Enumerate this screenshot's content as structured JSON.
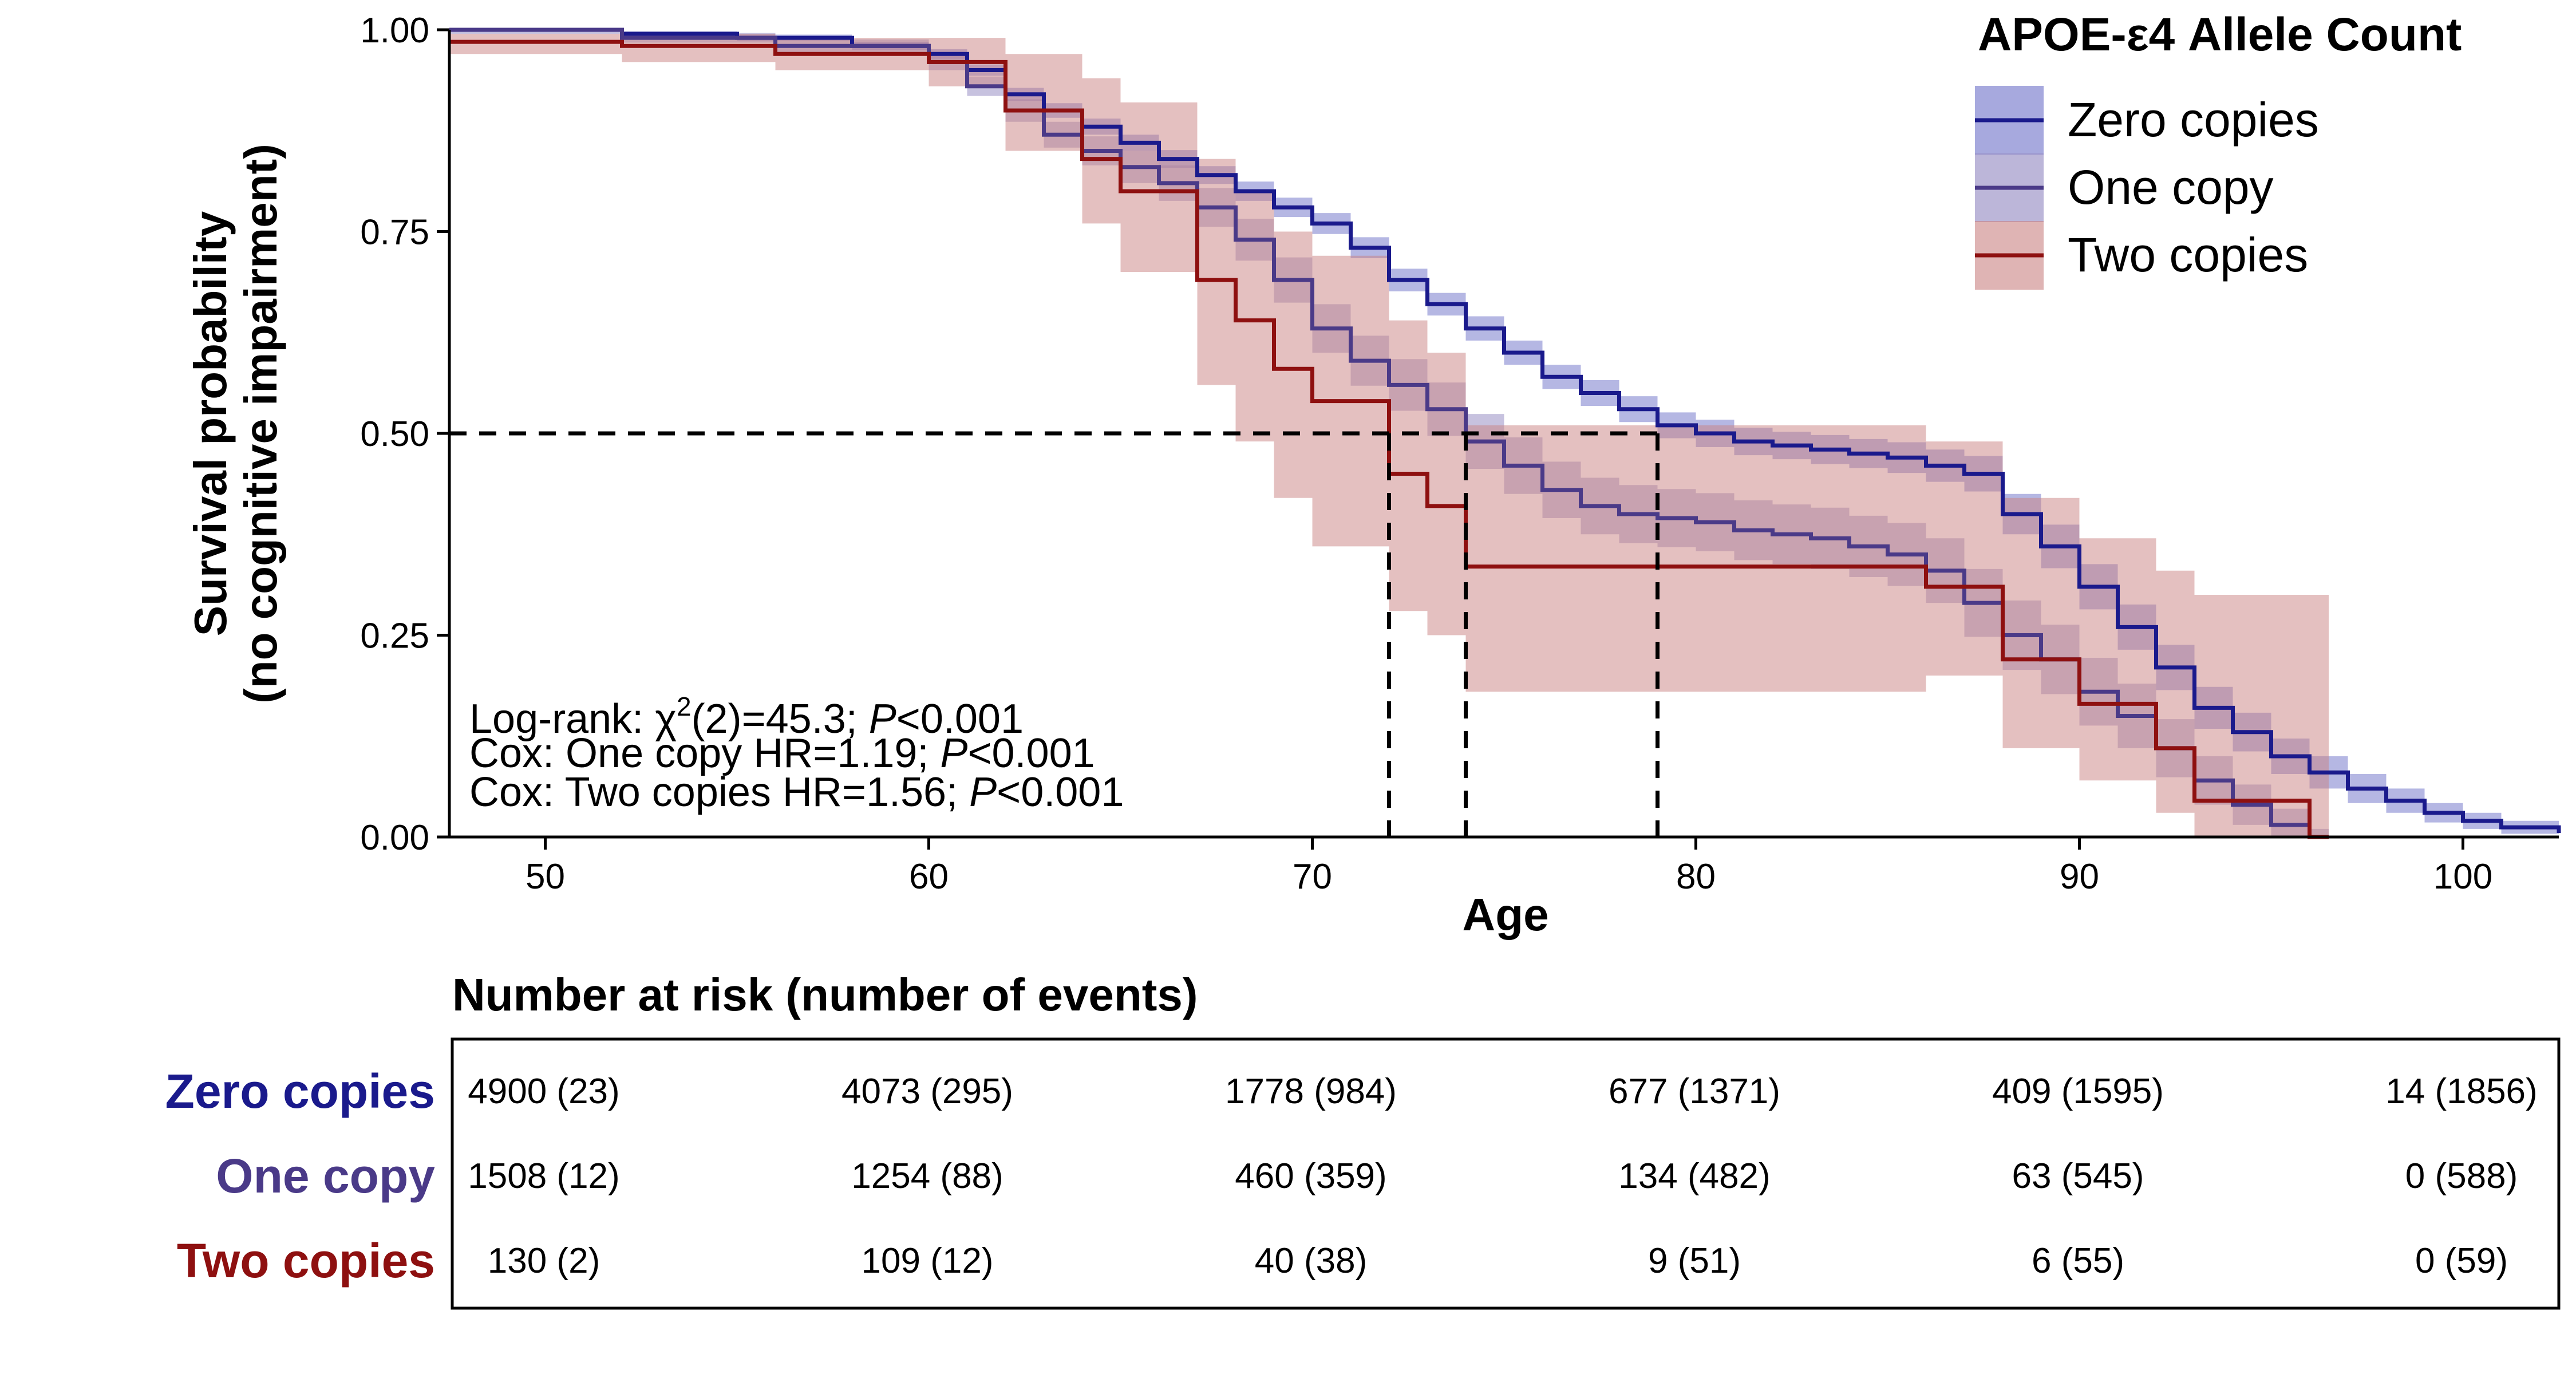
{
  "chart_data": {
    "type": "line",
    "subtype": "kaplan-meier-step",
    "xlabel": "Age",
    "ylabel_lines": [
      "Survival probability",
      "(no cognitive impairment)"
    ],
    "xlim": [
      47.5,
      102.5
    ],
    "ylim": [
      0,
      1
    ],
    "x_ticks": [
      50,
      60,
      70,
      80,
      90,
      100
    ],
    "x_tick_labels": [
      "50",
      "60",
      "70",
      "80",
      "90",
      "100"
    ],
    "y_ticks": [
      0,
      0.25,
      0.5,
      0.75,
      1
    ],
    "y_tick_labels": [
      "0.00",
      "0.25",
      "0.50",
      "0.75",
      "1.00"
    ],
    "grid": false,
    "legend": {
      "title": "APOE-ε4 Allele Count",
      "position": "top-right",
      "entries": [
        "Zero copies",
        "One copy",
        "Two copies"
      ]
    },
    "median_reference": {
      "y": 0.5,
      "x_values": [
        72,
        74,
        79
      ]
    },
    "annotations": {
      "logrank": {
        "prefix": "Log-rank: ",
        "chi": "χ",
        "sup": "2",
        "rest": "(2)=45.3; ",
        "p": "P",
        "tail": "<0.001"
      },
      "cox_one": {
        "prefix": "Cox: One copy HR=1.19; ",
        "p": "P",
        "tail": "<0.001"
      },
      "cox_two": {
        "prefix": "Cox: Two copies HR=1.56; ",
        "p": "P",
        "tail": "<0.001"
      }
    },
    "series": [
      {
        "name": "Zero copies",
        "color": "#1a1a8c",
        "band_color": "#6c70c8",
        "x": [
          47.5,
          52,
          55,
          58,
          60,
          61,
          62,
          63,
          64,
          65,
          66,
          67,
          68,
          69,
          70,
          71,
          72,
          73,
          74,
          75,
          76,
          77,
          78,
          79,
          80,
          81,
          82,
          83,
          84,
          85,
          86,
          87,
          88,
          89,
          90,
          91,
          92,
          93,
          94,
          95,
          96,
          97,
          98,
          99,
          100,
          101,
          102.5
        ],
        "y": [
          1.0,
          0.995,
          0.99,
          0.98,
          0.97,
          0.95,
          0.92,
          0.9,
          0.88,
          0.86,
          0.84,
          0.82,
          0.8,
          0.78,
          0.76,
          0.73,
          0.69,
          0.66,
          0.63,
          0.6,
          0.57,
          0.55,
          0.53,
          0.51,
          0.5,
          0.49,
          0.485,
          0.48,
          0.475,
          0.47,
          0.46,
          0.45,
          0.4,
          0.36,
          0.31,
          0.26,
          0.21,
          0.16,
          0.13,
          0.1,
          0.08,
          0.06,
          0.045,
          0.03,
          0.02,
          0.012,
          0.005
        ],
        "ci_halfwidth": [
          0.003,
          0.003,
          0.004,
          0.005,
          0.006,
          0.007,
          0.008,
          0.009,
          0.01,
          0.01,
          0.011,
          0.011,
          0.012,
          0.012,
          0.013,
          0.013,
          0.014,
          0.014,
          0.015,
          0.015,
          0.015,
          0.016,
          0.016,
          0.016,
          0.017,
          0.017,
          0.017,
          0.018,
          0.018,
          0.019,
          0.02,
          0.022,
          0.025,
          0.027,
          0.028,
          0.028,
          0.028,
          0.026,
          0.024,
          0.022,
          0.02,
          0.018,
          0.015,
          0.012,
          0.01,
          0.008,
          0.006
        ]
      },
      {
        "name": "One copy",
        "color": "#4a3a88",
        "band_color": "#8f86c0",
        "x": [
          47.5,
          52,
          56,
          60,
          61,
          62,
          63,
          64,
          65,
          66,
          67,
          68,
          69,
          70,
          71,
          72,
          73,
          74,
          75,
          76,
          77,
          78,
          79,
          80,
          81,
          82,
          83,
          84,
          85,
          86,
          87,
          88,
          89,
          90,
          91,
          92,
          93,
          94,
          95,
          96
        ],
        "y": [
          1.0,
          0.99,
          0.98,
          0.96,
          0.93,
          0.9,
          0.87,
          0.85,
          0.83,
          0.81,
          0.78,
          0.74,
          0.69,
          0.63,
          0.59,
          0.56,
          0.53,
          0.49,
          0.46,
          0.43,
          0.41,
          0.4,
          0.395,
          0.39,
          0.38,
          0.375,
          0.37,
          0.36,
          0.35,
          0.33,
          0.29,
          0.25,
          0.22,
          0.18,
          0.15,
          0.11,
          0.07,
          0.04,
          0.015,
          0.0
        ],
        "ci_halfwidth": [
          0.005,
          0.006,
          0.008,
          0.01,
          0.012,
          0.014,
          0.016,
          0.018,
          0.02,
          0.022,
          0.024,
          0.026,
          0.028,
          0.03,
          0.031,
          0.032,
          0.033,
          0.034,
          0.035,
          0.035,
          0.035,
          0.036,
          0.036,
          0.036,
          0.037,
          0.037,
          0.038,
          0.038,
          0.039,
          0.04,
          0.042,
          0.043,
          0.043,
          0.042,
          0.04,
          0.036,
          0.03,
          0.025,
          0.02,
          0.01
        ]
      },
      {
        "name": "Two copies",
        "color": "#8e1010",
        "band_color": "#c98282",
        "x": [
          47.5,
          52,
          56,
          60,
          62,
          64,
          65,
          67,
          68,
          69,
          70,
          72,
          73,
          74,
          86,
          88,
          90,
          92,
          93,
          96
        ],
        "y": [
          0.985,
          0.98,
          0.97,
          0.96,
          0.9,
          0.84,
          0.8,
          0.69,
          0.64,
          0.58,
          0.54,
          0.45,
          0.41,
          0.335,
          0.31,
          0.22,
          0.165,
          0.11,
          0.045,
          0.0
        ],
        "ci_upper": [
          0.995,
          0.995,
          0.99,
          0.99,
          0.97,
          0.94,
          0.91,
          0.84,
          0.8,
          0.75,
          0.72,
          0.64,
          0.6,
          0.51,
          0.49,
          0.42,
          0.37,
          0.33,
          0.3,
          0.3
        ],
        "ci_lower": [
          0.97,
          0.96,
          0.95,
          0.93,
          0.85,
          0.76,
          0.7,
          0.56,
          0.49,
          0.42,
          0.36,
          0.28,
          0.25,
          0.18,
          0.2,
          0.11,
          0.07,
          0.03,
          0.0,
          0.0
        ]
      }
    ]
  },
  "risk_table": {
    "title": "Number at risk (number of events)",
    "rows": [
      {
        "label": "Zero copies",
        "color": "#1a1a8c",
        "cells": [
          "4900 (23)",
          "4073 (295)",
          "1778 (984)",
          "677 (1371)",
          "409 (1595)",
          "14 (1856)"
        ]
      },
      {
        "label": "One copy",
        "color": "#4a3a88",
        "cells": [
          "1508 (12)",
          "1254 (88)",
          "460 (359)",
          "134 (482)",
          "63 (545)",
          "0 (588)"
        ]
      },
      {
        "label": "Two copies",
        "color": "#8e1010",
        "cells": [
          "130 (2)",
          "109 (12)",
          "40 (38)",
          "9 (51)",
          "6 (55)",
          "0 (59)"
        ]
      }
    ]
  }
}
